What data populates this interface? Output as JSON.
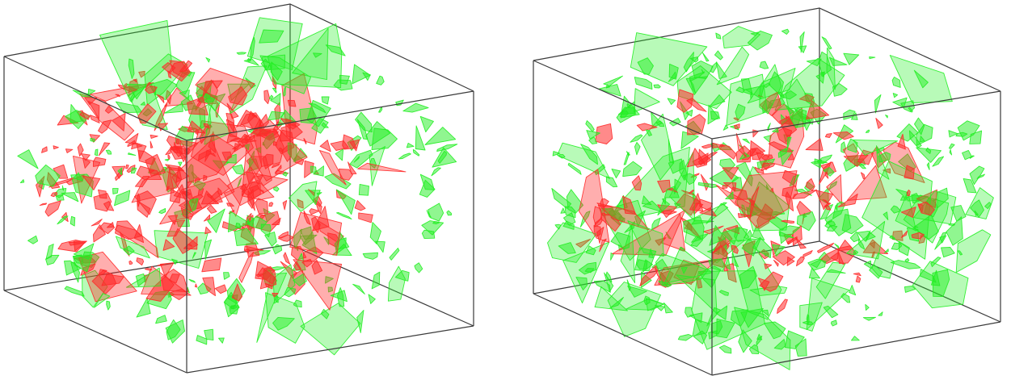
{
  "figure": {
    "panels": [
      {
        "id": "left",
        "fracture_colors": {
          "red": "#ff2a2a",
          "green": "#22ee22"
        },
        "red_fraction": 0.55
      },
      {
        "id": "right",
        "fracture_colors": {
          "red": "#ff2a2a",
          "green": "#22ee22"
        },
        "red_fraction": 0.28
      }
    ],
    "box_color": "#3a3a3a",
    "background_color": "#ffffff"
  }
}
